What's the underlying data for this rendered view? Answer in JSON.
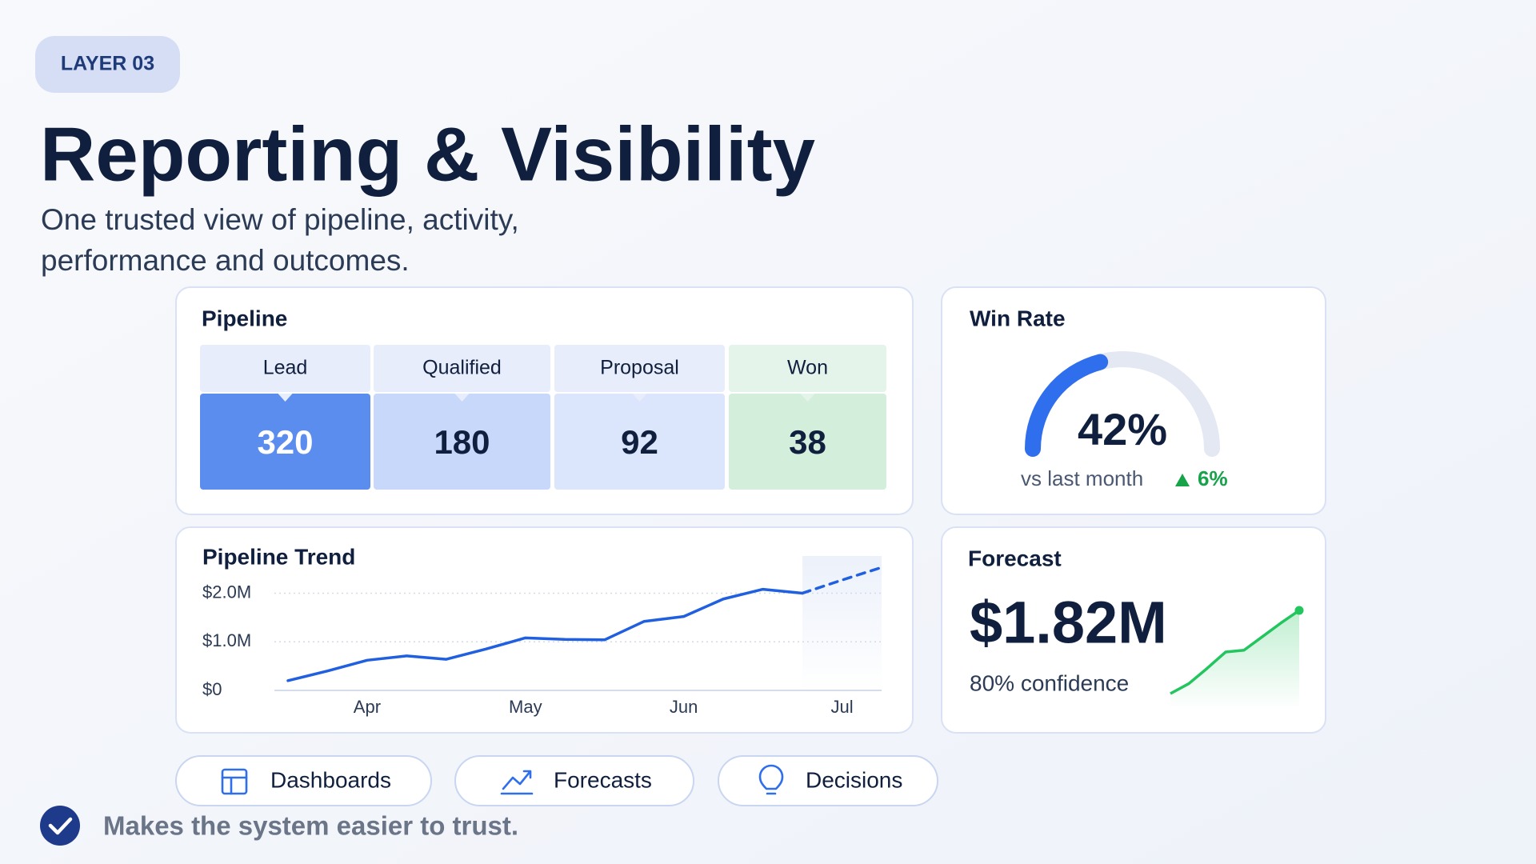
{
  "badge": "LAYER 03",
  "title": "Reporting & Visibility",
  "subtitle": [
    "One trusted view of pipeline, activity,",
    "performance and outcomes."
  ],
  "pipeline": {
    "title": "Pipeline",
    "stages": [
      {
        "label": "Lead",
        "value": 320,
        "color": "#5b8def"
      },
      {
        "label": "Qualified",
        "value": 180,
        "color": "#c7d8fa"
      },
      {
        "label": "Proposal",
        "value": 92,
        "color": "#dbe5fb"
      },
      {
        "label": "Won",
        "value": 38,
        "color": "#d3efdc"
      }
    ]
  },
  "win_rate": {
    "type": "gauge",
    "title": "Win Rate",
    "value": 42,
    "value_label": "42%",
    "max": 100,
    "color": "#2f6fed",
    "comparison": "vs last month",
    "change_label": "6%",
    "change_color": "#16a34a"
  },
  "trend": {
    "type": "line",
    "title": "Pipeline Trend",
    "categories": [
      null,
      null,
      "Apr",
      null,
      null,
      null,
      "May",
      null,
      null,
      null,
      "Jun",
      null,
      null,
      null,
      "Jul",
      null
    ],
    "series": [
      {
        "color": "#1f5fe0",
        "values": [
          200000,
          400000,
          620000,
          710000,
          640000,
          850000,
          1080000,
          1050000,
          1040000,
          1420000,
          1520000,
          1880000,
          2080000,
          2000000,
          null,
          null
        ]
      },
      {
        "color": "#1f5fe0",
        "dashed": true,
        "values": [
          null,
          null,
          null,
          null,
          null,
          null,
          null,
          null,
          null,
          null,
          null,
          null,
          null,
          2000000,
          2270000,
          2530000
        ]
      }
    ],
    "ylim": [
      0,
      2600000
    ],
    "yticks": [
      {
        "value": 0,
        "label": "$0"
      },
      {
        "value": 1000000,
        "label": "$1.0M"
      },
      {
        "value": 2000000,
        "label": "$2.0M"
      }
    ],
    "grid": true
  },
  "forecast": {
    "title": "Forecast",
    "value_label": "$1.82M",
    "confidence_label": "80% confidence",
    "sparkline": {
      "type": "area",
      "color": "#22c55e",
      "values": [
        0,
        11,
        28,
        46,
        48,
        63,
        78,
        92
      ],
      "ylim": [
        0,
        100
      ]
    }
  },
  "actions": [
    "Dashboards",
    "Forecasts",
    "Decisions"
  ],
  "footer": "Makes the system easier to trust."
}
